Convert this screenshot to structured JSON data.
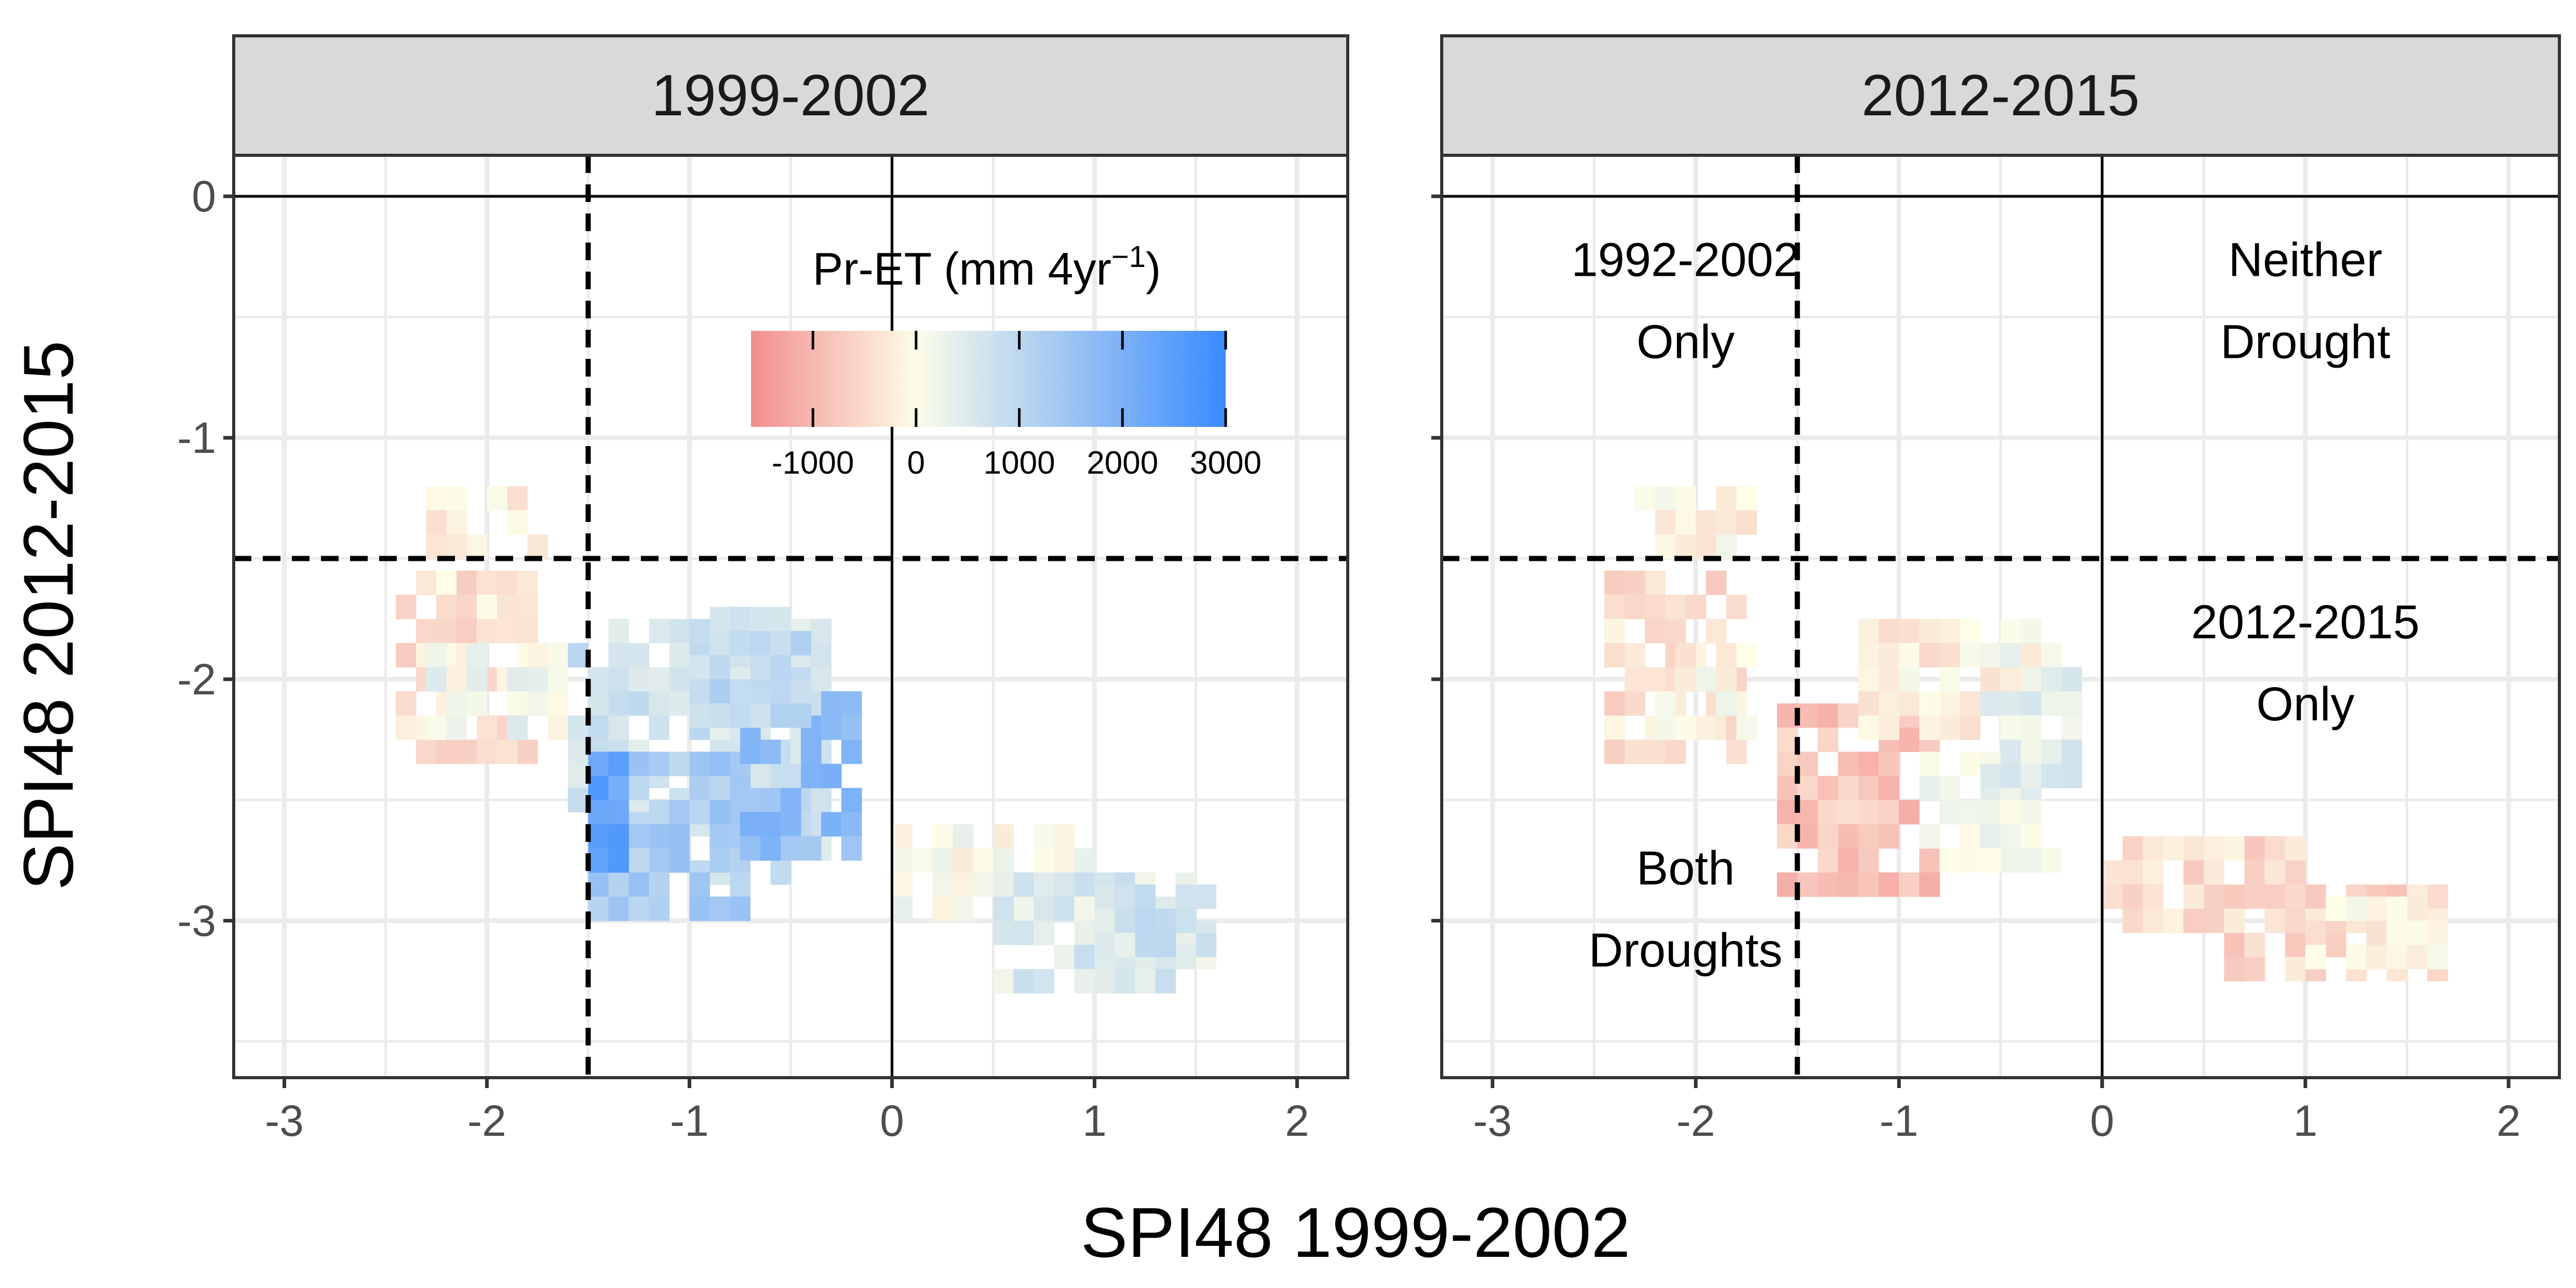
{
  "chart_data": {
    "type": "heatmap",
    "x_axis_title": "SPI48 1999-2002",
    "y_axis_title": "SPI48 2012-2015",
    "xlim": [
      -3.25,
      2.25
    ],
    "ylim": [
      -3.65,
      0.17
    ],
    "x_ticks": [
      "-3",
      "-2",
      "-1",
      "0",
      "1",
      "2"
    ],
    "x_tick_values": [
      -3,
      -2,
      -1,
      0,
      1,
      2
    ],
    "y_ticks": [
      "0",
      "-1",
      "-2",
      "-3"
    ],
    "y_tick_values": [
      0,
      -1,
      -2,
      -3
    ],
    "grid": true,
    "reference_lines": {
      "solid": {
        "x": 0,
        "y": 0
      },
      "dashed": {
        "x": -1.5,
        "y": -1.5
      }
    },
    "colorbar": {
      "title_main": "Pr-ET (mm 4yr",
      "title_sup": "−1",
      "title_end": ")",
      "placement": "inside-top-right",
      "tick_labels": [
        "-1000",
        "0",
        "1000",
        "2000",
        "3000"
      ],
      "tick_values": [
        -1000,
        0,
        1000,
        2000,
        3000
      ],
      "range": [
        -1600,
        3000
      ],
      "colors": {
        "low": "#f28e8e",
        "mid": "#fdfde8",
        "high": "#3a8bff"
      }
    },
    "panels": [
      {
        "strip": "1999-2002",
        "cell_size": 0.1,
        "region_labels": [],
        "clusters": [
          {
            "xr": [
              -2.45,
              -1.75
            ],
            "yr": [
              -2.4,
              -1.55
            ],
            "val": -350
          },
          {
            "xr": [
              -2.3,
              -1.65
            ],
            "yr": [
              -1.5,
              -1.2
            ],
            "val": -250
          },
          {
            "xr": [
              -2.3,
              -1.6
            ],
            "yr": [
              -2.2,
              -1.85
            ],
            "val": 150
          },
          {
            "xr": [
              -1.6,
              -0.3
            ],
            "yr": [
              -2.9,
              -1.75
            ],
            "val": 700
          },
          {
            "xr": [
              -1.5,
              -0.75
            ],
            "yr": [
              -3.0,
              -2.3
            ],
            "val": 1300
          },
          {
            "xr": [
              -0.75,
              -0.2
            ],
            "yr": [
              -2.75,
              -2.05
            ],
            "val": 1700
          },
          {
            "xr": [
              -1.0,
              -0.45
            ],
            "yr": [
              -2.2,
              -1.7
            ],
            "val": 900
          },
          {
            "xr": [
              -1.5,
              -1.3
            ],
            "yr": [
              -2.75,
              -2.3
            ],
            "val": 2400
          },
          {
            "xr": [
              0.0,
              1.0
            ],
            "yr": [
              -2.95,
              -2.6
            ],
            "val": 80
          },
          {
            "xr": [
              0.5,
              1.6
            ],
            "yr": [
              -3.25,
              -2.8
            ],
            "val": 500
          },
          {
            "xr": [
              1.0,
              1.65
            ],
            "yr": [
              -3.15,
              -2.85
            ],
            "val": 650
          }
        ]
      },
      {
        "strip": "2012-2015",
        "cell_size": 0.1,
        "region_labels": [
          {
            "lines": [
              "1992-2002",
              "Only"
            ],
            "x": -2.05,
            "y": -0.33
          },
          {
            "lines": [
              "Neither",
              "Drought"
            ],
            "x": 1.0,
            "y": -0.33
          },
          {
            "lines": [
              "2012-2015",
              "Only"
            ],
            "x": 1.0,
            "y": -1.83
          },
          {
            "lines": [
              "Both",
              "Droughts"
            ],
            "x": -2.05,
            "y": -2.85
          }
        ],
        "clusters": [
          {
            "xr": [
              -2.45,
              -1.75
            ],
            "yr": [
              -2.4,
              -1.55
            ],
            "val": -400
          },
          {
            "xr": [
              -2.3,
              -1.65
            ],
            "yr": [
              -1.5,
              -1.2
            ],
            "val": -150
          },
          {
            "xr": [
              -2.2,
              -1.6
            ],
            "yr": [
              -2.2,
              -1.85
            ],
            "val": -100
          },
          {
            "xr": [
              -1.6,
              -0.8
            ],
            "yr": [
              -2.9,
              -2.1
            ],
            "val": -800
          },
          {
            "xr": [
              -1.2,
              -0.3
            ],
            "yr": [
              -2.25,
              -1.75
            ],
            "val": -200
          },
          {
            "xr": [
              -0.9,
              -0.2
            ],
            "yr": [
              -2.8,
              -2.3
            ],
            "val": 150
          },
          {
            "xr": [
              -0.6,
              -0.05
            ],
            "yr": [
              -2.5,
              -1.85
            ],
            "val": 350
          },
          {
            "xr": [
              0.0,
              1.0
            ],
            "yr": [
              -3.0,
              -2.65
            ],
            "val": -450
          },
          {
            "xr": [
              0.6,
              1.7
            ],
            "yr": [
              -3.25,
              -2.85
            ],
            "val": -550
          },
          {
            "xr": [
              1.0,
              1.7
            ],
            "yr": [
              -3.2,
              -2.9
            ],
            "val": -150
          }
        ]
      }
    ]
  }
}
